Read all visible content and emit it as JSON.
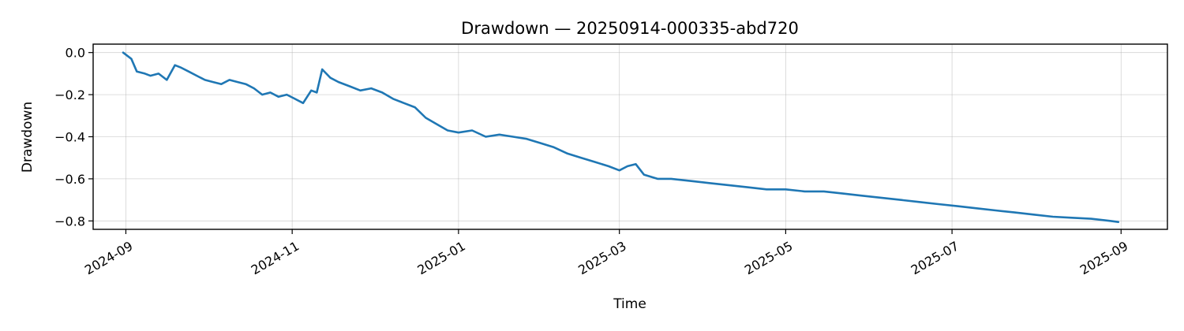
{
  "chart_data": {
    "type": "line",
    "title": "Drawdown — 20250914-000335-abd720",
    "xlabel": "Time",
    "ylabel": "Drawdown",
    "grid": true,
    "xlim": [
      "2024-08-20",
      "2025-09-18"
    ],
    "ylim": [
      -0.84,
      0.04
    ],
    "x_ticks": [
      "2024-09",
      "2024-11",
      "2025-01",
      "2025-03",
      "2025-05",
      "2025-07",
      "2025-09"
    ],
    "y_ticks": [
      "0.0",
      "−0.2",
      "−0.4",
      "−0.6",
      "−0.8"
    ],
    "y_tick_values": [
      0.0,
      -0.2,
      -0.4,
      -0.6,
      -0.8
    ],
    "series": [
      {
        "color": "#1f77b4",
        "x": [
          "2024-08-31",
          "2024-09-03",
          "2024-09-05",
          "2024-09-08",
          "2024-09-10",
          "2024-09-13",
          "2024-09-16",
          "2024-09-19",
          "2024-09-21",
          "2024-09-24",
          "2024-09-27",
          "2024-09-30",
          "2024-10-03",
          "2024-10-06",
          "2024-10-09",
          "2024-10-12",
          "2024-10-15",
          "2024-10-18",
          "2024-10-21",
          "2024-10-24",
          "2024-10-27",
          "2024-10-30",
          "2024-11-02",
          "2024-11-05",
          "2024-11-08",
          "2024-11-10",
          "2024-11-12",
          "2024-11-15",
          "2024-11-18",
          "2024-11-22",
          "2024-11-26",
          "2024-11-30",
          "2024-12-04",
          "2024-12-08",
          "2024-12-12",
          "2024-12-16",
          "2024-12-20",
          "2024-12-24",
          "2024-12-28",
          "2025-01-01",
          "2025-01-06",
          "2025-01-11",
          "2025-01-16",
          "2025-01-21",
          "2025-01-26",
          "2025-01-31",
          "2025-02-05",
          "2025-02-10",
          "2025-02-15",
          "2025-02-20",
          "2025-02-25",
          "2025-03-01",
          "2025-03-04",
          "2025-03-07",
          "2025-03-10",
          "2025-03-15",
          "2025-03-20",
          "2025-03-27",
          "2025-04-03",
          "2025-04-10",
          "2025-04-17",
          "2025-04-24",
          "2025-05-01",
          "2025-05-08",
          "2025-05-15",
          "2025-05-22",
          "2025-05-29",
          "2025-06-05",
          "2025-06-12",
          "2025-06-19",
          "2025-06-26",
          "2025-07-03",
          "2025-07-10",
          "2025-07-17",
          "2025-07-24",
          "2025-07-31",
          "2025-08-07",
          "2025-08-14",
          "2025-08-21",
          "2025-08-28",
          "2025-08-31"
        ],
        "y": [
          0.0,
          -0.03,
          -0.09,
          -0.1,
          -0.11,
          -0.1,
          -0.13,
          -0.06,
          -0.07,
          -0.09,
          -0.11,
          -0.13,
          -0.14,
          -0.15,
          -0.13,
          -0.14,
          -0.15,
          -0.17,
          -0.2,
          -0.19,
          -0.21,
          -0.2,
          -0.22,
          -0.24,
          -0.18,
          -0.19,
          -0.08,
          -0.12,
          -0.14,
          -0.16,
          -0.18,
          -0.17,
          -0.19,
          -0.22,
          -0.24,
          -0.26,
          -0.31,
          -0.34,
          -0.37,
          -0.38,
          -0.37,
          -0.4,
          -0.39,
          -0.4,
          -0.41,
          -0.43,
          -0.45,
          -0.48,
          -0.5,
          -0.52,
          -0.54,
          -0.56,
          -0.54,
          -0.53,
          -0.58,
          -0.6,
          -0.6,
          -0.61,
          -0.62,
          -0.63,
          -0.64,
          -0.65,
          -0.65,
          -0.66,
          -0.66,
          -0.67,
          -0.68,
          -0.69,
          -0.7,
          -0.71,
          -0.72,
          -0.73,
          -0.74,
          -0.75,
          -0.76,
          -0.77,
          -0.78,
          -0.785,
          -0.79,
          -0.8,
          -0.805
        ]
      }
    ]
  }
}
